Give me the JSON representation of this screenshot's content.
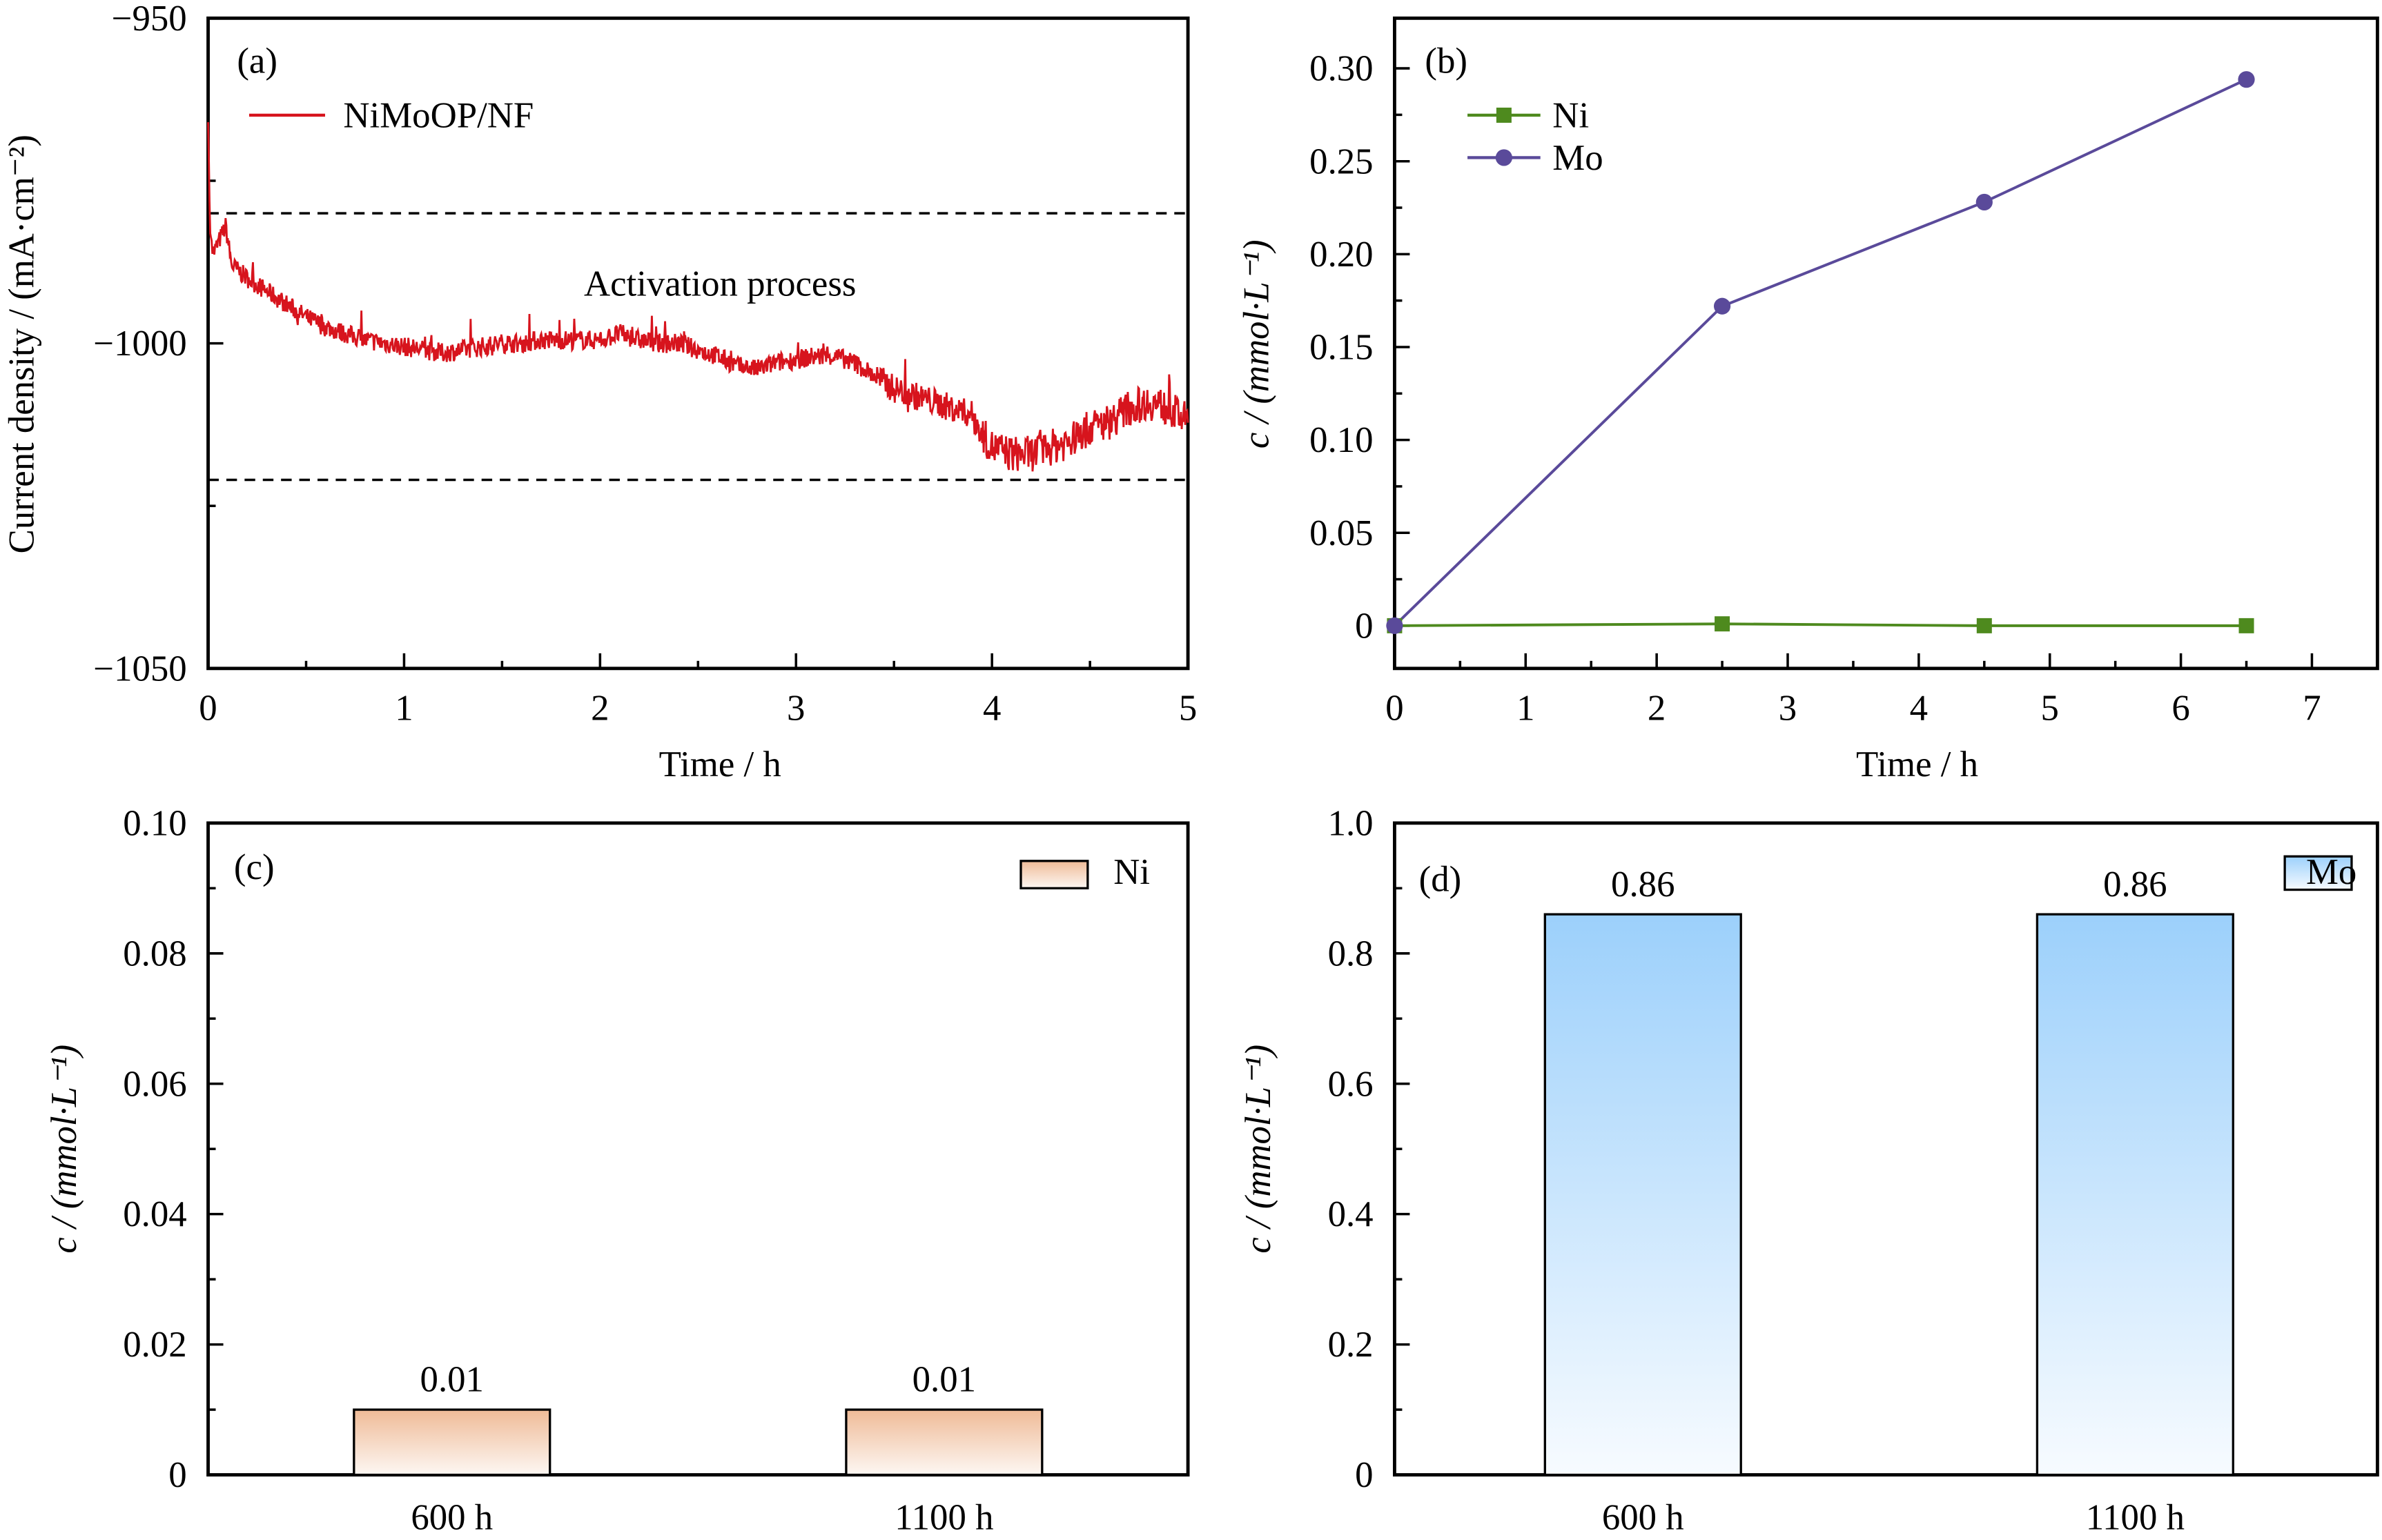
{
  "chart_data": [
    {
      "id": "a",
      "type": "line",
      "panel_label": "(a)",
      "xlabel": "Time / h",
      "ylabel": "Current density / (mA·cm⁻²)",
      "xlim": [
        0,
        5
      ],
      "ylim": [
        -1050,
        -950
      ],
      "xticks": [
        0,
        1,
        2,
        3,
        4,
        5
      ],
      "xtick_labels": [
        "0",
        "1",
        "2",
        "3",
        "4",
        "5"
      ],
      "yticks": [
        -950,
        -1000,
        -1050
      ],
      "ytick_labels": [
        "−950",
        "−1000",
        "−1050"
      ],
      "y_minor_ticks": [
        -975,
        -1025
      ],
      "x_minor_ticks": [
        0.5,
        1.5,
        2.5,
        3.5,
        4.5
      ],
      "legend": [
        {
          "name": "NiMoOP/NF",
          "color": "#d7141d"
        }
      ],
      "legend_position": "top-left",
      "annotation": "Activation process",
      "reference_lines": [
        -980,
        -1021
      ],
      "series": [
        {
          "name": "NiMoOP/NF",
          "color": "#d7141d",
          "x": [
            0,
            0.01,
            0.03,
            0.06,
            0.09,
            0.1,
            0.12,
            0.2,
            0.3,
            0.4,
            0.5,
            0.6,
            0.7,
            0.8,
            0.9,
            1.0,
            1.1,
            1.2,
            1.3,
            1.4,
            1.5,
            1.6,
            1.7,
            1.8,
            1.9,
            2.0,
            2.1,
            2.2,
            2.3,
            2.4,
            2.5,
            2.6,
            2.7,
            2.8,
            2.9,
            3.0,
            3.1,
            3.2,
            3.3,
            3.4,
            3.5,
            3.6,
            3.7,
            3.8,
            3.9,
            3.95,
            4.0,
            4.1,
            4.2,
            4.3,
            4.4,
            4.5,
            4.6,
            4.7,
            4.8,
            4.9,
            5.0
          ],
          "y": [
            -966,
            -983,
            -986,
            -984,
            -982,
            -984,
            -988,
            -990,
            -992,
            -994,
            -996,
            -997.5,
            -998.5,
            -999.5,
            -1000,
            -1000.5,
            -1001,
            -1001.5,
            -1001,
            -1000.5,
            -1000,
            -1000,
            -999.5,
            -999.5,
            -999.5,
            -999.5,
            -998.5,
            -999.5,
            -1000,
            -1000,
            -1001,
            -1002,
            -1003.5,
            -1004,
            -1003,
            -1002.5,
            -1002,
            -1002,
            -1003,
            -1005,
            -1007,
            -1008,
            -1009,
            -1010,
            -1011,
            -1014,
            -1016,
            -1017,
            -1017,
            -1016,
            -1015,
            -1013,
            -1012,
            -1010,
            -1009,
            -1010,
            -1012
          ]
        }
      ]
    },
    {
      "id": "b",
      "type": "line",
      "panel_label": "(b)",
      "xlabel": "Time / h",
      "ylabel": "c / (mmol·L⁻¹)",
      "xlim": [
        0,
        7.5
      ],
      "ylim": [
        -0.023,
        0.327
      ],
      "xticks": [
        0,
        1,
        2,
        3,
        4,
        5,
        6,
        7
      ],
      "xtick_labels": [
        "0",
        "1",
        "2",
        "3",
        "4",
        "5",
        "6",
        "7"
      ],
      "yticks": [
        0,
        0.05,
        0.1,
        0.15,
        0.2,
        0.25,
        0.3
      ],
      "ytick_labels": [
        "0",
        "0.05",
        "0.10",
        "0.15",
        "0.20",
        "0.25",
        "0.30"
      ],
      "legend_position": "top-left",
      "series": [
        {
          "name": "Ni",
          "color": "#4e8a1e",
          "marker": "square",
          "x": [
            0,
            2.5,
            4.5,
            6.5
          ],
          "y": [
            0,
            0.001,
            0,
            0
          ]
        },
        {
          "name": "Mo",
          "color": "#5a4a9a",
          "marker": "circle",
          "x": [
            0,
            2.5,
            4.5,
            6.5
          ],
          "y": [
            0,
            0.172,
            0.228,
            0.294
          ]
        }
      ]
    },
    {
      "id": "c",
      "type": "bar",
      "panel_label": "(c)",
      "xlabel": "",
      "ylabel": "c / (mmol·L⁻¹)",
      "ylim": [
        0,
        0.1
      ],
      "yticks": [
        0,
        0.02,
        0.04,
        0.06,
        0.08,
        0.1
      ],
      "ytick_labels": [
        "0",
        "0.02",
        "0.04",
        "0.06",
        "0.08",
        "0.10"
      ],
      "categories": [
        "600 h",
        "1100 h"
      ],
      "values": [
        0.01,
        0.01
      ],
      "data_labels": [
        "0.01",
        "0.01"
      ],
      "legend": [
        {
          "name": "Ni",
          "gradient_top": "#efbb97",
          "gradient_bottom": "#fdf7f3"
        }
      ],
      "legend_position": "top-right"
    },
    {
      "id": "d",
      "type": "bar",
      "panel_label": "(d)",
      "xlabel": "",
      "ylabel": "c / (mmol·L⁻¹)",
      "ylim": [
        0,
        1.0
      ],
      "yticks": [
        0,
        0.2,
        0.4,
        0.6,
        0.8,
        1.0
      ],
      "ytick_labels": [
        "0",
        "0.2",
        "0.4",
        "0.6",
        "0.8",
        "1.0"
      ],
      "categories": [
        "600 h",
        "1100 h"
      ],
      "values": [
        0.86,
        0.86
      ],
      "data_labels": [
        "0.86",
        "0.86"
      ],
      "legend": [
        {
          "name": "Mo",
          "gradient_top": "#9cd0fb",
          "gradient_bottom": "#f7fbff"
        }
      ],
      "legend_position": "top-right"
    }
  ]
}
